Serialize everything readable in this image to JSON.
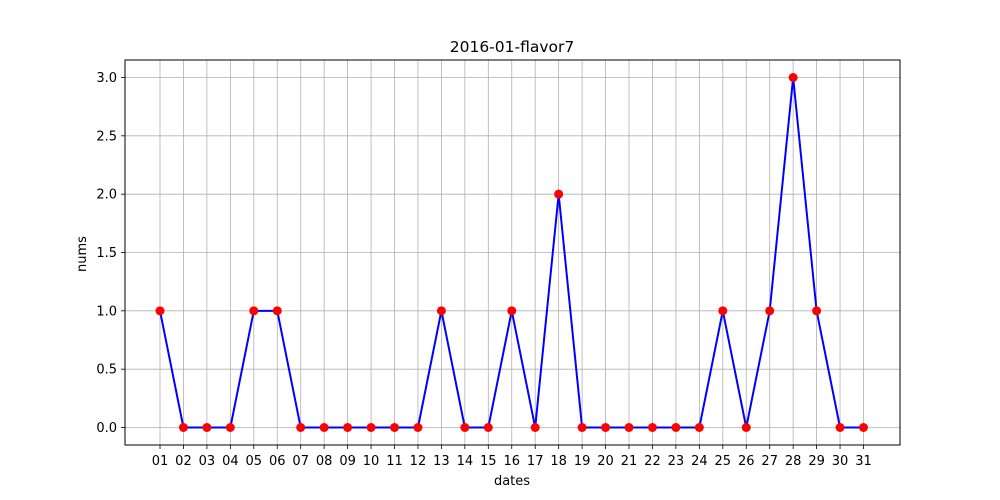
{
  "chart_data": {
    "type": "line",
    "title": "2016-01-flavor7",
    "xlabel": "dates",
    "ylabel": "nums",
    "categories": [
      "01",
      "02",
      "03",
      "04",
      "05",
      "06",
      "07",
      "08",
      "09",
      "10",
      "11",
      "12",
      "13",
      "14",
      "15",
      "16",
      "17",
      "18",
      "19",
      "20",
      "21",
      "22",
      "23",
      "24",
      "25",
      "26",
      "27",
      "28",
      "29",
      "30",
      "31"
    ],
    "series": [
      {
        "values": [
          1,
          0,
          0,
          0,
          1,
          1,
          0,
          0,
          0,
          0,
          0,
          0,
          1,
          0,
          0,
          1,
          0,
          2,
          0,
          0,
          0,
          0,
          0,
          0,
          1,
          0,
          1,
          3,
          1,
          0,
          0
        ]
      }
    ],
    "ylim": [
      -0.15,
      3.15
    ],
    "yticks": [
      "0.0",
      "0.5",
      "1.0",
      "1.5",
      "2.0",
      "2.5",
      "3.0"
    ],
    "grid": true,
    "colors": {
      "line": "#0000ff",
      "marker": "#ff0000",
      "grid": "#b0b0b0"
    }
  }
}
